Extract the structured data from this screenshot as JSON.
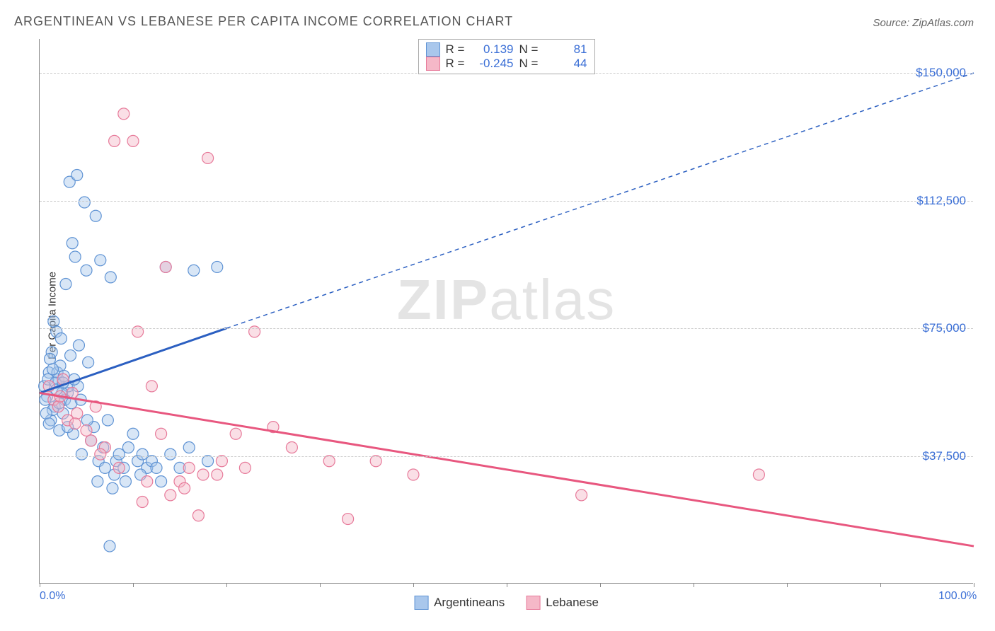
{
  "title": "ARGENTINEAN VS LEBANESE PER CAPITA INCOME CORRELATION CHART",
  "source": "Source: ZipAtlas.com",
  "ylabel": "Per Capita Income",
  "watermark": {
    "part1": "ZIP",
    "part2": "atlas"
  },
  "chart": {
    "type": "scatter",
    "xlim": [
      0,
      100
    ],
    "ylim": [
      0,
      160000
    ],
    "background_color": "#ffffff",
    "grid_color": "#cccccc",
    "grid_dashed": true,
    "marker_radius": 8,
    "marker_fill_opacity": 0.45,
    "xticks": [
      0,
      10,
      20,
      30,
      40,
      50,
      60,
      70,
      80,
      90,
      100
    ],
    "xtick_labels": {
      "0": "0.0%",
      "100": "100.0%"
    },
    "yticks": [
      37500,
      75000,
      112500,
      150000
    ],
    "ytick_labels": [
      "$37,500",
      "$75,000",
      "$112,500",
      "$150,000"
    ],
    "series": [
      {
        "name": "Argentineans",
        "color_fill": "#a9c7ec",
        "color_stroke": "#5f93d4",
        "regression": {
          "R": 0.139,
          "N": 81,
          "line_color": "#2b5fc1",
          "line_width": 3,
          "x1": 0,
          "y1": 56000,
          "x_solid_end": 20,
          "y_solid_end": 75000,
          "x2": 100,
          "y2": 150000
        },
        "points": [
          [
            0.5,
            58000
          ],
          [
            0.8,
            55000
          ],
          [
            1.0,
            62000
          ],
          [
            1.2,
            48000
          ],
          [
            1.3,
            68000
          ],
          [
            1.5,
            77000
          ],
          [
            1.6,
            52000
          ],
          [
            1.8,
            74000
          ],
          [
            2.0,
            60000
          ],
          [
            2.1,
            45000
          ],
          [
            2.3,
            72000
          ],
          [
            2.5,
            50000
          ],
          [
            2.8,
            88000
          ],
          [
            3.0,
            56000
          ],
          [
            3.2,
            118000
          ],
          [
            3.5,
            100000
          ],
          [
            3.6,
            44000
          ],
          [
            3.8,
            96000
          ],
          [
            4.0,
            120000
          ],
          [
            4.2,
            70000
          ],
          [
            4.5,
            38000
          ],
          [
            4.8,
            112000
          ],
          [
            5.0,
            92000
          ],
          [
            5.2,
            65000
          ],
          [
            5.5,
            42000
          ],
          [
            5.8,
            46000
          ],
          [
            6.0,
            108000
          ],
          [
            6.3,
            36000
          ],
          [
            6.5,
            95000
          ],
          [
            6.8,
            40000
          ],
          [
            7.0,
            34000
          ],
          [
            7.3,
            48000
          ],
          [
            7.6,
            90000
          ],
          [
            8.0,
            32000
          ],
          [
            8.2,
            36000
          ],
          [
            8.5,
            38000
          ],
          [
            9.0,
            34000
          ],
          [
            9.5,
            40000
          ],
          [
            10.0,
            44000
          ],
          [
            10.5,
            36000
          ],
          [
            11.0,
            38000
          ],
          [
            11.5,
            34000
          ],
          [
            12.0,
            36000
          ],
          [
            13.0,
            30000
          ],
          [
            13.5,
            93000
          ],
          [
            14.0,
            38000
          ],
          [
            15.0,
            34000
          ],
          [
            16.0,
            40000
          ],
          [
            16.5,
            92000
          ],
          [
            18.0,
            36000
          ],
          [
            19.0,
            93000
          ],
          [
            7.5,
            11000
          ],
          [
            2.7,
            54000
          ],
          [
            3.1,
            58000
          ],
          [
            1.4,
            51000
          ],
          [
            1.9,
            62000
          ],
          [
            0.9,
            60000
          ],
          [
            2.4,
            56000
          ],
          [
            3.4,
            53000
          ],
          [
            4.1,
            58000
          ],
          [
            1.1,
            66000
          ],
          [
            1.7,
            59000
          ],
          [
            2.2,
            64000
          ],
          [
            2.6,
            61000
          ],
          [
            3.3,
            67000
          ],
          [
            0.6,
            54000
          ],
          [
            0.7,
            50000
          ],
          [
            1.0,
            47000
          ],
          [
            1.4,
            63000
          ],
          [
            1.8,
            57000
          ],
          [
            2.1,
            53000
          ],
          [
            2.5,
            59000
          ],
          [
            3.0,
            46000
          ],
          [
            3.7,
            60000
          ],
          [
            4.4,
            54000
          ],
          [
            5.1,
            48000
          ],
          [
            6.2,
            30000
          ],
          [
            7.8,
            28000
          ],
          [
            9.2,
            30000
          ],
          [
            10.8,
            32000
          ],
          [
            12.5,
            34000
          ]
        ]
      },
      {
        "name": "Lebanese",
        "color_fill": "#f5b8c8",
        "color_stroke": "#e77a9a",
        "regression": {
          "R": -0.245,
          "N": 44,
          "line_color": "#e8577f",
          "line_width": 3,
          "x1": 0,
          "y1": 56000,
          "x_solid_end": 100,
          "y_solid_end": 11000,
          "x2": 100,
          "y2": 11000
        },
        "points": [
          [
            1.0,
            58000
          ],
          [
            1.5,
            54000
          ],
          [
            2.0,
            52000
          ],
          [
            2.5,
            60000
          ],
          [
            3.0,
            48000
          ],
          [
            3.5,
            56000
          ],
          [
            4.0,
            50000
          ],
          [
            5.0,
            45000
          ],
          [
            6.0,
            52000
          ],
          [
            7.0,
            40000
          ],
          [
            8.0,
            130000
          ],
          [
            9.0,
            138000
          ],
          [
            10.0,
            130000
          ],
          [
            10.5,
            74000
          ],
          [
            11.0,
            24000
          ],
          [
            12.0,
            58000
          ],
          [
            13.0,
            44000
          ],
          [
            13.5,
            93000
          ],
          [
            14.0,
            26000
          ],
          [
            15.0,
            30000
          ],
          [
            16.0,
            34000
          ],
          [
            17.0,
            20000
          ],
          [
            17.5,
            32000
          ],
          [
            18.0,
            125000
          ],
          [
            19.0,
            32000
          ],
          [
            21.0,
            44000
          ],
          [
            22.0,
            34000
          ],
          [
            23.0,
            74000
          ],
          [
            25.0,
            46000
          ],
          [
            27.0,
            40000
          ],
          [
            31.0,
            36000
          ],
          [
            33.0,
            19000
          ],
          [
            36.0,
            36000
          ],
          [
            40.0,
            32000
          ],
          [
            58.0,
            26000
          ],
          [
            77.0,
            32000
          ],
          [
            2.2,
            55000
          ],
          [
            3.8,
            47000
          ],
          [
            5.5,
            42000
          ],
          [
            6.5,
            38000
          ],
          [
            8.5,
            34000
          ],
          [
            11.5,
            30000
          ],
          [
            15.5,
            28000
          ],
          [
            19.5,
            36000
          ]
        ]
      }
    ]
  },
  "legend_top": {
    "r_label": "R =",
    "n_label": "N ="
  },
  "legend_bottom": [
    "Argentineans",
    "Lebanese"
  ]
}
